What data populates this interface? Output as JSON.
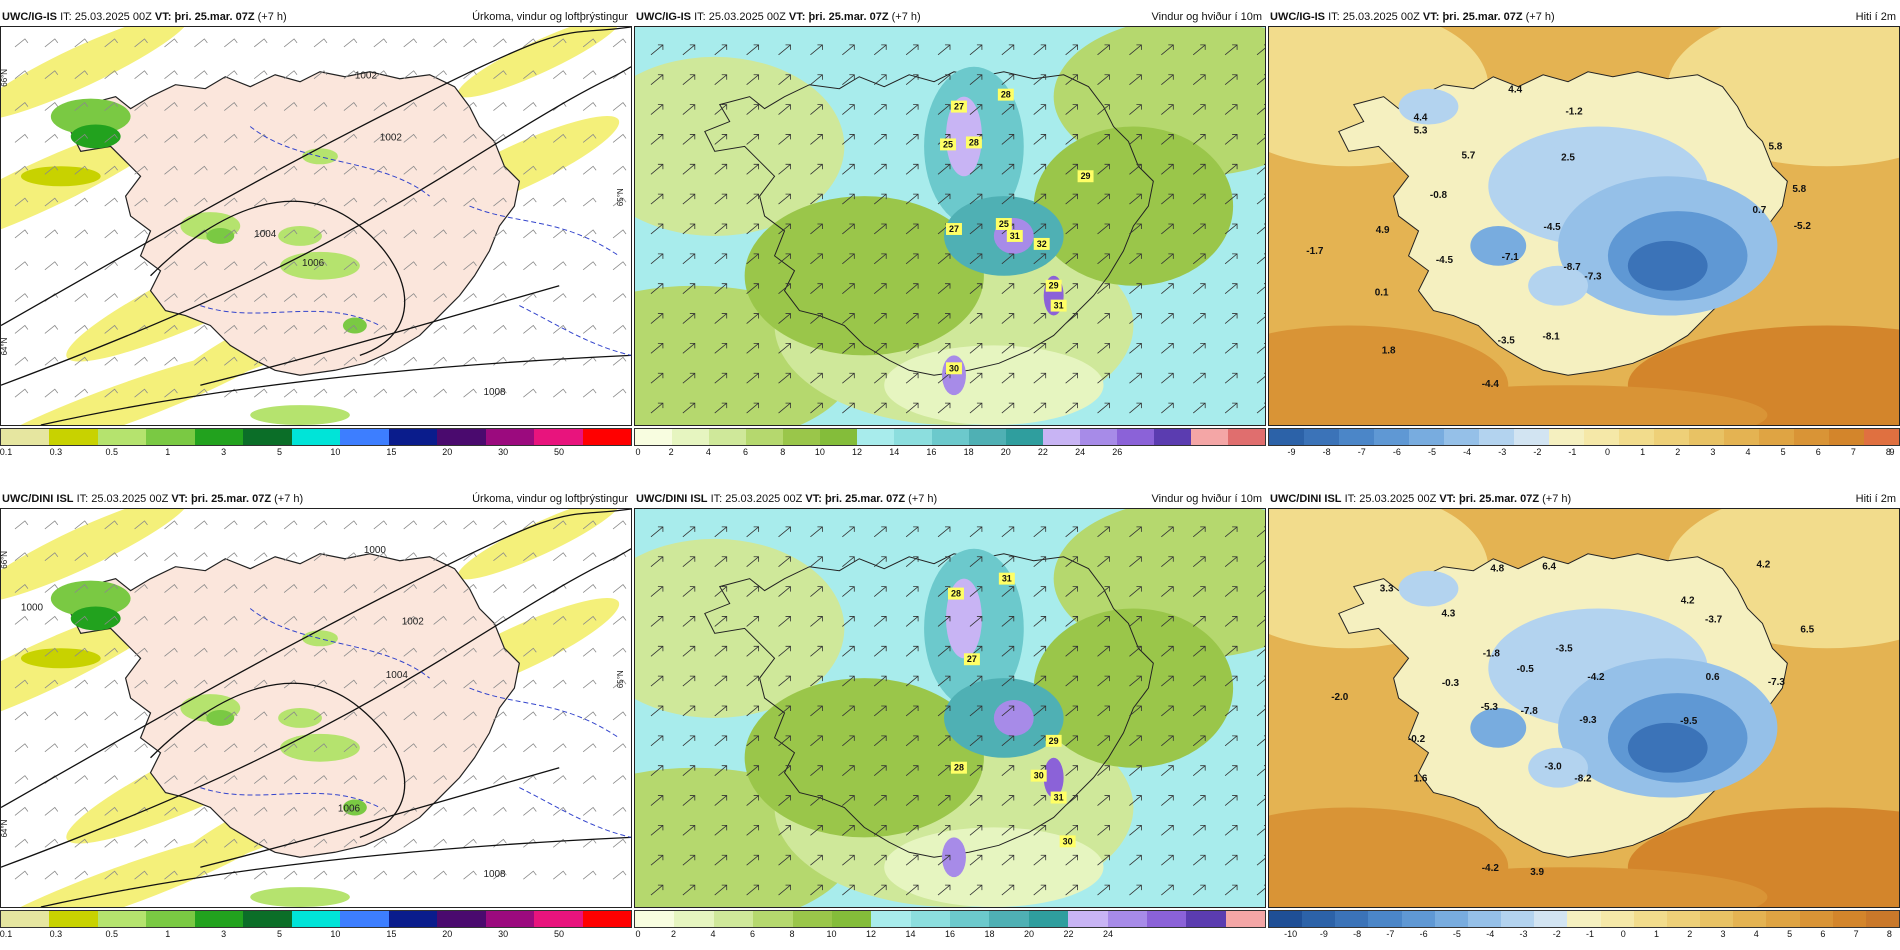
{
  "panels": [
    {
      "id": "p1",
      "model": "UWC/IG-IS",
      "it_label": "IT:",
      "it_value": "25.03.2025 00Z",
      "vt_label": "VT:",
      "vt_value": "þri. 25.mar. 07Z",
      "lead": "(+7 h)",
      "product": "Úrkoma, vindur og loftþrýstingur",
      "kind": "precip",
      "colorbar": [
        "#e6e6a0",
        "#c8d200",
        "#b5e36e",
        "#7ac943",
        "#22a21e",
        "#0b6e28",
        "#00e4d8",
        "#3d7eff",
        "#0a1c8c",
        "#4a0a6e",
        "#9b0a7e",
        "#e8147d",
        "#ff0000"
      ],
      "ticks": [
        "0.1",
        "0.3",
        "0.5",
        "1",
        "3",
        "5",
        "10",
        "15",
        "20",
        "30",
        "50"
      ],
      "isobars": [
        "1002",
        "1002",
        "1004",
        "1006",
        "1008"
      ],
      "side_labels": [
        "66°N",
        "64°N",
        "65°N"
      ]
    },
    {
      "id": "p2",
      "model": "UWC/IG-IS",
      "it_label": "IT:",
      "it_value": "25.03.2025 00Z",
      "vt_label": "VT:",
      "vt_value": "þri. 25.mar. 07Z",
      "lead": "(+7 h)",
      "product": "Vindur og hviður í 10m",
      "kind": "wind",
      "colorbar": [
        "#f8fde0",
        "#e6f5c0",
        "#cfe89a",
        "#b5d86e",
        "#9ac64a",
        "#84bd3a",
        "#a8ecec",
        "#8cdede",
        "#6cc9cc",
        "#4fb0b4",
        "#2f9e9e",
        "#c8b4f4",
        "#a78be8",
        "#8b62d8",
        "#5b3cb0",
        "#f4a6a6",
        "#e06e6e"
      ],
      "ticks": [
        "0",
        "2",
        "4",
        "6",
        "8",
        "10",
        "12",
        "14",
        "16",
        "18",
        "20",
        "22",
        "24",
        "26"
      ],
      "wind_labels": [
        "27",
        "28",
        "25",
        "28",
        "29",
        "27",
        "25",
        "31",
        "32",
        "29",
        "31",
        "30"
      ]
    },
    {
      "id": "p3",
      "model": "UWC/IG-IS",
      "it_label": "IT:",
      "it_value": "25.03.2025 00Z",
      "vt_label": "VT:",
      "vt_value": "þri. 25.mar. 07Z",
      "lead": "(+7 h)",
      "product": "Hiti í 2m",
      "kind": "temp",
      "colorbar": [
        "#2c62a8",
        "#3b73b8",
        "#4b86c8",
        "#5f98d4",
        "#78acdf",
        "#95c0e8",
        "#b3d3ef",
        "#d2e4f2",
        "#f5f0c0",
        "#f5e8a8",
        "#f2dc8c",
        "#eed078",
        "#e8c264",
        "#e4b352",
        "#dfa443",
        "#d99436",
        "#d3852b",
        "#e07040"
      ],
      "ticks": [
        "-9",
        "-8",
        "-7",
        "-6",
        "-5",
        "-4",
        "-3",
        "-2",
        "-1",
        "0",
        "1",
        "2",
        "3",
        "4",
        "5",
        "6",
        "7",
        "8",
        "9"
      ],
      "temps": [
        "4.4",
        "4.4",
        "5.3",
        "-1.2",
        "5.7",
        "2.5",
        "5.8",
        "-0.8",
        "5.8",
        "4.9",
        "-4.5",
        "0.7",
        "-5.2",
        "-1.7",
        "-4.5",
        "-7.1",
        "-8.7",
        "-7.3",
        "0.1",
        "-3.5",
        "-8.1",
        "1.8",
        "-4.4"
      ]
    },
    {
      "id": "p4",
      "model": "UWC/DINI ISL",
      "it_label": "IT:",
      "it_value": "25.03.2025 00Z",
      "vt_label": "VT:",
      "vt_value": "þri. 25.mar. 07Z",
      "lead": "(+7 h)",
      "product": "Úrkoma, vindur og loftþrýstingur",
      "kind": "precip",
      "colorbar": [
        "#e6e6a0",
        "#c8d200",
        "#b5e36e",
        "#7ac943",
        "#22a21e",
        "#0b6e28",
        "#00e4d8",
        "#3d7eff",
        "#0a1c8c",
        "#4a0a6e",
        "#9b0a7e",
        "#e8147d",
        "#ff0000"
      ],
      "ticks": [
        "0.1",
        "0.3",
        "0.5",
        "1",
        "3",
        "5",
        "10",
        "15",
        "20",
        "30",
        "50"
      ],
      "isobars": [
        "1000",
        "1000",
        "1002",
        "1004",
        "1006",
        "1008"
      ],
      "side_labels": [
        "66°N",
        "64°N",
        "65°N"
      ]
    },
    {
      "id": "p5",
      "model": "UWC/DINI ISL",
      "it_label": "IT:",
      "it_value": "25.03.2025 00Z",
      "vt_label": "VT:",
      "vt_value": "þri. 25.mar. 07Z",
      "lead": "(+7 h)",
      "product": "Vindur og hviður í 10m",
      "kind": "wind",
      "colorbar": [
        "#f8fde0",
        "#e6f5c0",
        "#cfe89a",
        "#b5d86e",
        "#9ac64a",
        "#84bd3a",
        "#a8ecec",
        "#8cdede",
        "#6cc9cc",
        "#4fb0b4",
        "#2f9e9e",
        "#c8b4f4",
        "#a78be8",
        "#8b62d8",
        "#5b3cb0",
        "#f4a6a6"
      ],
      "ticks": [
        "0",
        "2",
        "4",
        "6",
        "8",
        "10",
        "12",
        "14",
        "16",
        "18",
        "20",
        "22",
        "24"
      ],
      "wind_labels": [
        "28",
        "31",
        "27",
        "29",
        "28",
        "30",
        "31",
        "30"
      ]
    },
    {
      "id": "p6",
      "model": "UWC/DINI ISL",
      "it_label": "IT:",
      "it_value": "25.03.2025 00Z",
      "vt_label": "VT:",
      "vt_value": "þri. 25.mar. 07Z",
      "lead": "(+7 h)",
      "product": "Hiti í 2m",
      "kind": "temp",
      "colorbar": [
        "#1f4f96",
        "#2c62a8",
        "#3b73b8",
        "#4b86c8",
        "#5f98d4",
        "#78acdf",
        "#95c0e8",
        "#b3d3ef",
        "#d2e4f2",
        "#f5f0c0",
        "#f5e8a8",
        "#f2dc8c",
        "#eed078",
        "#e8c264",
        "#e4b352",
        "#dfa443",
        "#d99436",
        "#d3852b",
        "#c9782a"
      ],
      "ticks": [
        "-10",
        "-9",
        "-8",
        "-7",
        "-6",
        "-5",
        "-4",
        "-3",
        "-2",
        "-1",
        "0",
        "1",
        "2",
        "3",
        "4",
        "5",
        "6",
        "7",
        "8"
      ],
      "temps": [
        "4.2",
        "6.4",
        "4.8",
        "3.3",
        "4.3",
        "-3.7",
        "6.5",
        "4.2",
        "-1.8",
        "-3.5",
        "-0.5",
        "-0.3",
        "-4.2",
        "0.6",
        "-7.3",
        "-2.0",
        "-5.3",
        "-7.8",
        "-9.3",
        "-9.5",
        "-0.2",
        "-3.0",
        "1.6",
        "-8.2",
        "-4.2",
        "3.9"
      ]
    }
  ]
}
